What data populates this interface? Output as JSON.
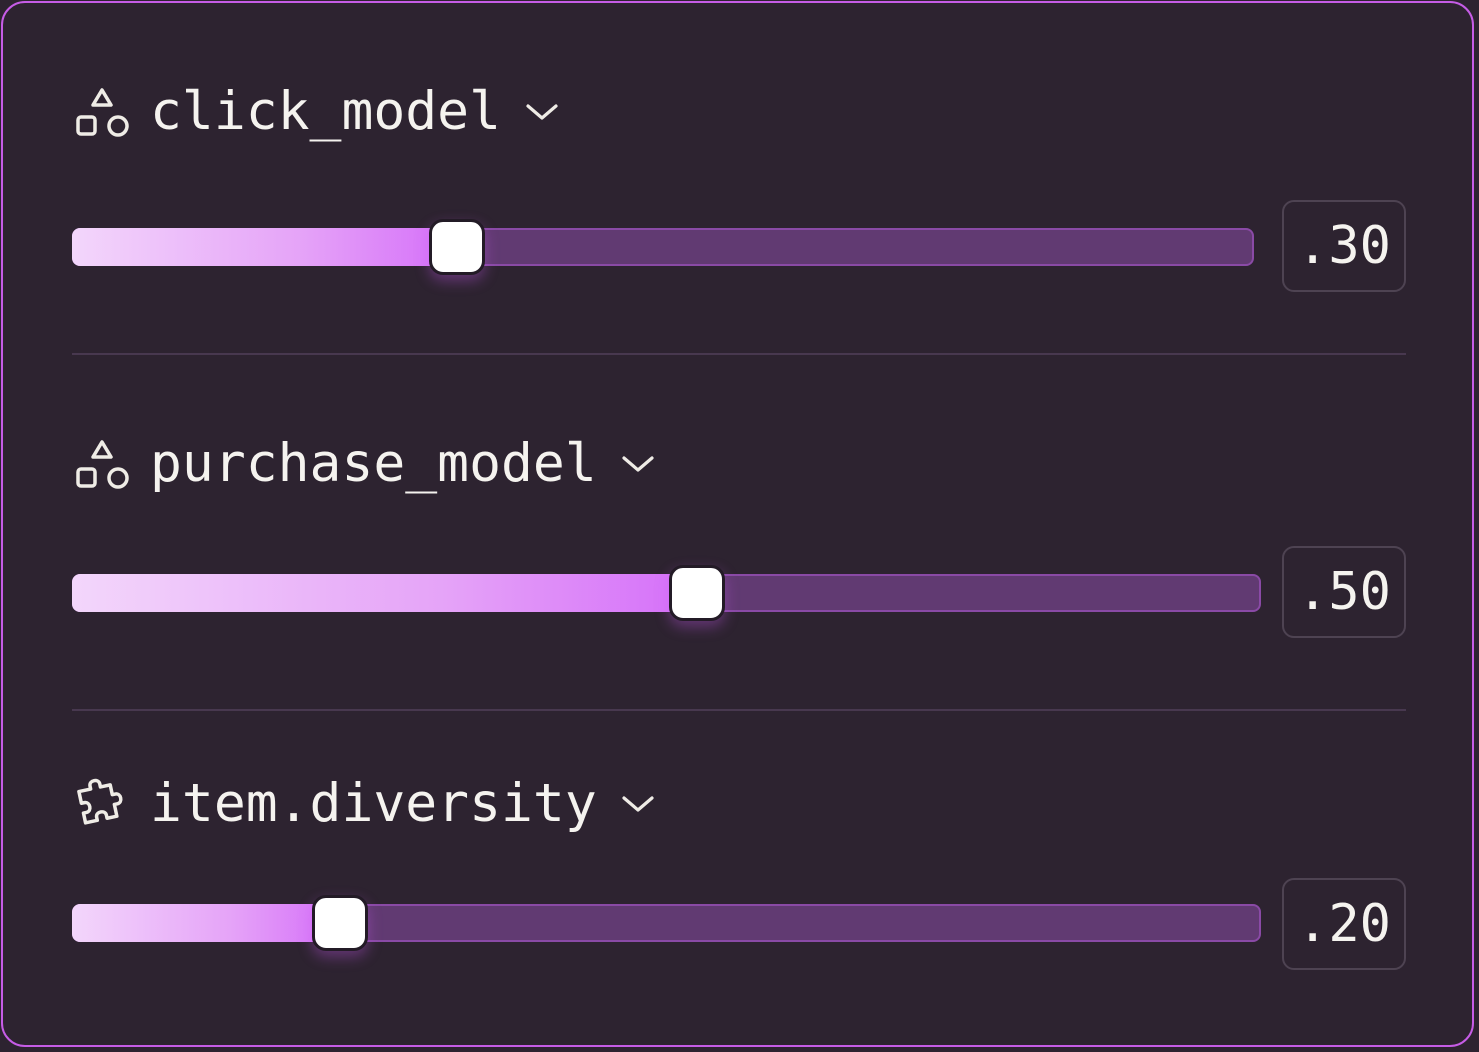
{
  "accent_color": "#d56ff9",
  "border_color": "#c65ce6",
  "sliders": [
    {
      "label": "click_model",
      "icon": "shapes-icon",
      "value": 0.3,
      "value_text": ".30"
    },
    {
      "label": "purchase_model",
      "icon": "shapes-icon",
      "value": 0.5,
      "value_text": ".50"
    },
    {
      "label": "item.diversity",
      "icon": "puzzle-icon",
      "value": 0.2,
      "value_text": ".20"
    }
  ]
}
